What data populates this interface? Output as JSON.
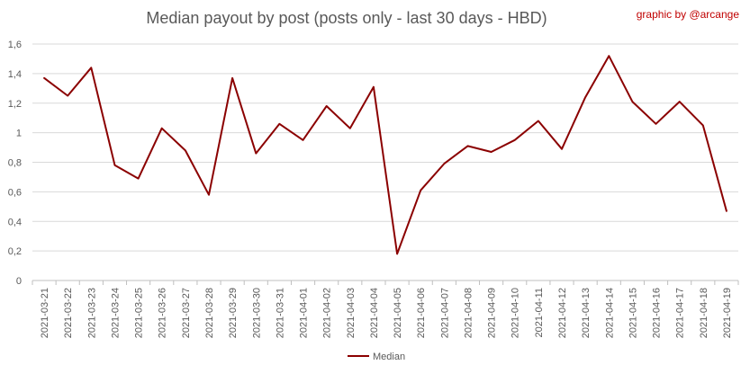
{
  "chart_data": {
    "type": "line",
    "title": "Median payout by post (posts only - last 30 days - HBD)",
    "credit": "graphic by @arcange",
    "xlabel": "",
    "ylabel": "",
    "ylim": [
      0,
      1.6
    ],
    "ytick_labels": [
      "0",
      "0,2",
      "0,4",
      "0,6",
      "0,8",
      "1",
      "1,2",
      "1,4",
      "1,6"
    ],
    "grid": true,
    "legend_position": "bottom",
    "categories": [
      "2021-03-21",
      "2021-03-22",
      "2021-03-23",
      "2021-03-24",
      "2021-03-25",
      "2021-03-26",
      "2021-03-27",
      "2021-03-28",
      "2021-03-29",
      "2021-03-30",
      "2021-03-31",
      "2021-04-01",
      "2021-04-02",
      "2021-04-03",
      "2021-04-04",
      "2021-04-05",
      "2021-04-06",
      "2021-04-07",
      "2021-04-08",
      "2021-04-09",
      "2021-04-10",
      "2021-04-11",
      "2021-04-12",
      "2021-04-13",
      "2021-04-14",
      "2021-04-15",
      "2021-04-16",
      "2021-04-17",
      "2021-04-18",
      "2021-04-19"
    ],
    "series": [
      {
        "name": "Median",
        "color": "#8b0000",
        "values": [
          1.37,
          1.25,
          1.44,
          0.78,
          0.69,
          1.03,
          0.88,
          0.58,
          1.37,
          0.86,
          1.06,
          0.95,
          1.18,
          1.03,
          1.31,
          0.18,
          0.61,
          0.79,
          0.91,
          0.87,
          0.95,
          1.08,
          0.89,
          1.24,
          1.52,
          1.21,
          1.06,
          1.21,
          1.05,
          0.47
        ]
      }
    ]
  }
}
